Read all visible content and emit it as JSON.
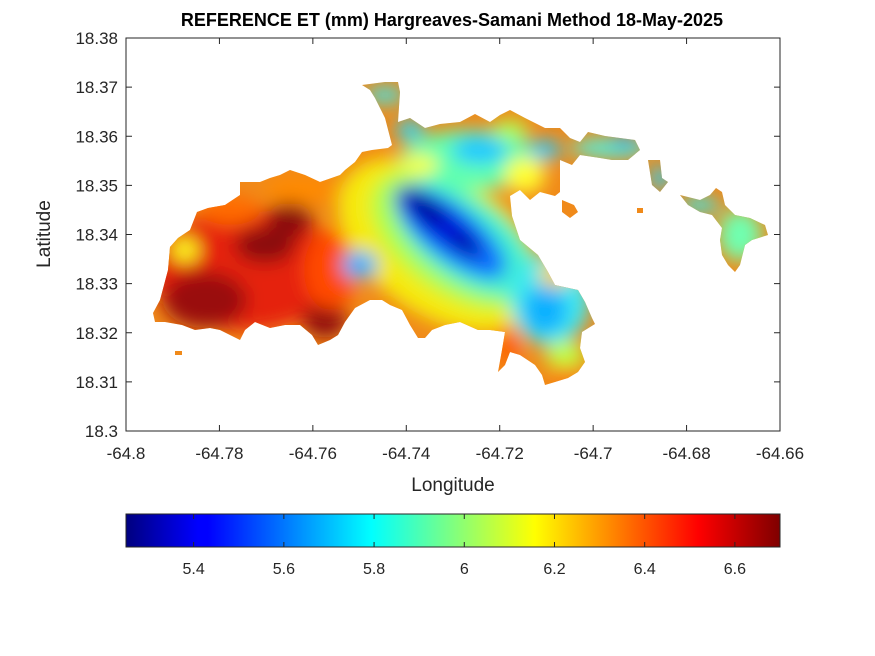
{
  "chart_data": {
    "type": "heatmap",
    "title": "REFERENCE ET (mm) Hargreaves-Samani Method  18-May-2025",
    "xlabel": "Longitude",
    "ylabel": "Latitude",
    "xlim": [
      -64.8,
      -64.66
    ],
    "ylim": [
      18.3,
      18.38
    ],
    "x_ticks": [
      "-64.8",
      "-64.78",
      "-64.76",
      "-64.74",
      "-64.72",
      "-64.7",
      "-64.68",
      "-64.66"
    ],
    "y_ticks": [
      "18.3",
      "18.31",
      "18.32",
      "18.33",
      "18.34",
      "18.35",
      "18.36",
      "18.37",
      "18.38"
    ],
    "colormap": "jet",
    "clim": [
      5.25,
      6.7
    ],
    "colorbar": {
      "location": "bottom",
      "ticks": [
        "5.4",
        "5.6",
        "5.8",
        "6",
        "6.2",
        "6.4",
        "6.6"
      ]
    },
    "regions": [
      {
        "description": "western lobe",
        "lon": [
          -64.792,
          -64.757
        ],
        "lat": [
          18.318,
          18.348
        ],
        "value_range": [
          6.4,
          6.7
        ]
      },
      {
        "description": "central-west ridge",
        "lon": [
          -64.757,
          -64.745
        ],
        "lat": [
          18.32,
          18.35
        ],
        "value_range": [
          6.2,
          6.5
        ]
      },
      {
        "description": "central minimum",
        "lon": [
          -64.744,
          -64.725
        ],
        "lat": [
          18.333,
          18.348
        ],
        "value_range": [
          5.25,
          5.5
        ]
      },
      {
        "description": "northern arm and eastern tail",
        "lon": [
          -64.735,
          -64.663
        ],
        "lat": [
          18.332,
          18.371
        ],
        "value_range": [
          5.7,
          6.0
        ]
      },
      {
        "description": "southeast peninsula",
        "lon": [
          -64.72,
          -64.7
        ],
        "lat": [
          18.309,
          18.33
        ],
        "value_range": [
          5.6,
          6.3
        ]
      }
    ]
  }
}
